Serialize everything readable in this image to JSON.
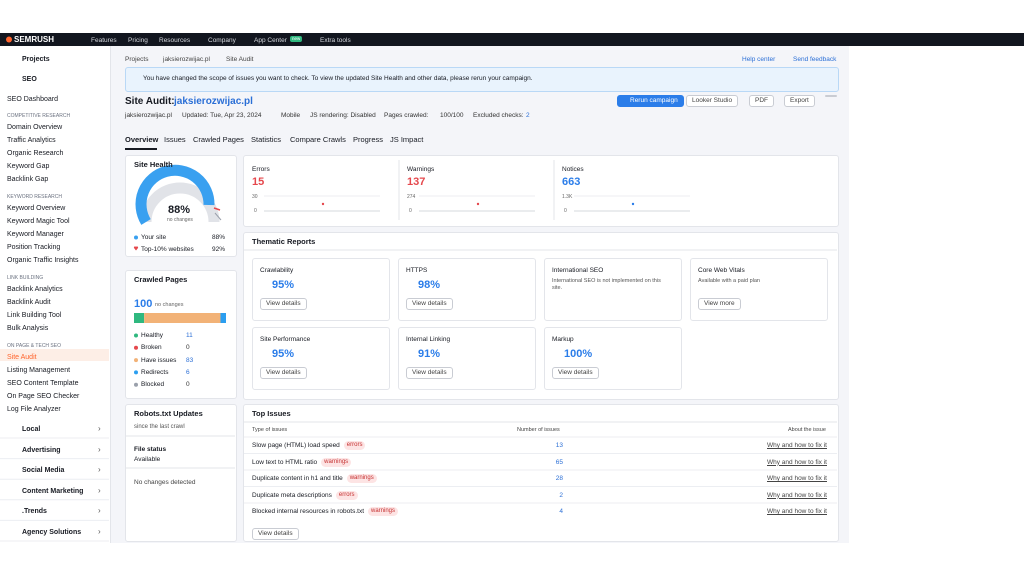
{
  "nav": {
    "logo": "SEMRUSH",
    "items": [
      "Features",
      "Pricing",
      "Resources",
      "Company",
      "App Center",
      "Extra tools"
    ],
    "badge": "new"
  },
  "sidebar": {
    "projects": "Projects",
    "seo": "SEO",
    "dashboard": "SEO Dashboard",
    "sections": [
      {
        "title": "COMPETITIVE RESEARCH",
        "items": [
          "Domain Overview",
          "Traffic Analytics",
          "Organic Research",
          "Keyword Gap",
          "Backlink Gap"
        ]
      },
      {
        "title": "KEYWORD RESEARCH",
        "items": [
          "Keyword Overview",
          "Keyword Magic Tool",
          "Keyword Manager",
          "Position Tracking",
          "Organic Traffic Insights"
        ]
      },
      {
        "title": "LINK BUILDING",
        "items": [
          "Backlink Analytics",
          "Backlink Audit",
          "Link Building Tool",
          "Bulk Analysis"
        ]
      },
      {
        "title": "ON PAGE & TECH SEO",
        "items": [
          "Site Audit",
          "Listing Management",
          "SEO Content Template",
          "On Page SEO Checker",
          "Log File Analyzer"
        ]
      }
    ],
    "tools": [
      "Local",
      "Advertising",
      "Social Media",
      "Content Marketing",
      ".Trends",
      "Agency Solutions"
    ]
  },
  "breadcrumb": [
    "Projects",
    "jaksierozwijac.pl",
    "Site Audit"
  ],
  "help": [
    "Help center",
    "Send feedback"
  ],
  "notice": "You have changed the scope of issues you want to check. To view the updated Site Health and other data, please rerun your campaign.",
  "header": {
    "title": "Site Audit:",
    "domain": "jaksierozwijac.pl",
    "buttons": [
      "Rerun campaign",
      "Looker Studio",
      "PDF",
      "Export"
    ],
    "info": {
      "domain": "jaksierozwijac.pl",
      "updated": "Updated: Tue, Apr 23, 2024",
      "device": "Mobile",
      "js": "JS rendering: Disabled",
      "pages_label": "Pages crawled:",
      "pages": "100/100",
      "excluded_label": "Excluded checks:",
      "excluded": "2"
    }
  },
  "tabs": [
    "Overview",
    "Issues",
    "Crawled Pages",
    "Statistics",
    "Compare Crawls",
    "Progress",
    "JS Impact"
  ],
  "site_health": {
    "title": "Site Health",
    "value": "88%",
    "change": "no changes",
    "legend": [
      {
        "name": "Your site",
        "value": "88%"
      },
      {
        "name": "Top-10% websites",
        "value": "92%"
      }
    ]
  },
  "crawled": {
    "title": "Crawled Pages",
    "total": "100",
    "change": "no changes",
    "rows": [
      {
        "name": "Healthy",
        "value": 11,
        "color": "#2fb87f"
      },
      {
        "name": "Broken",
        "value": 0,
        "color": "#e5484d"
      },
      {
        "name": "Have issues",
        "value": 83,
        "color": "#f2b277"
      },
      {
        "name": "Redirects",
        "value": 6,
        "color": "#2b9ef0"
      },
      {
        "name": "Blocked",
        "value": 0,
        "color": "#9aa0ab"
      }
    ]
  },
  "robots": {
    "title": "Robots.txt Updates",
    "subtitle": "since the last crawl",
    "status_label": "File status",
    "status": "Available",
    "changes": "No changes detected"
  },
  "metrics": [
    {
      "name": "Errors",
      "value": "15",
      "color": "#e5484d",
      "top": "30",
      "bottom": "0"
    },
    {
      "name": "Warnings",
      "value": "137",
      "color": "#e5484d",
      "top": "274",
      "bottom": "0"
    },
    {
      "name": "Notices",
      "value": "663",
      "color": "#2b7de9",
      "top": "1.3K",
      "bottom": "0"
    }
  ],
  "thematic": {
    "title": "Thematic Reports",
    "cards": [
      {
        "name": "Crawlability",
        "value": "95%",
        "button": "View details"
      },
      {
        "name": "HTTPS",
        "value": "98%",
        "button": "View details"
      },
      {
        "name": "International SEO",
        "text": "International SEO is not implemented on this site."
      },
      {
        "name": "Core Web Vitals",
        "text": "Available with a paid plan",
        "button": "View more"
      },
      {
        "name": "Site Performance",
        "value": "95%",
        "button": "View details"
      },
      {
        "name": "Internal Linking",
        "value": "91%",
        "button": "View details"
      },
      {
        "name": "Markup",
        "value": "100%",
        "button": "View details"
      }
    ]
  },
  "issues": {
    "title": "Top Issues",
    "columns": [
      "Type of issues",
      "Number of issues",
      "About the issue"
    ],
    "rows": [
      {
        "name": "Slow page (HTML) load speed",
        "tag": "errors",
        "count": "13",
        "link": "Why and how to fix it"
      },
      {
        "name": "Low text to HTML ratio",
        "tag": "warnings",
        "count": "65",
        "link": "Why and how to fix it"
      },
      {
        "name": "Duplicate content in h1 and title",
        "tag": "warnings",
        "count": "28",
        "link": "Why and how to fix it"
      },
      {
        "name": "Duplicate meta descriptions",
        "tag": "errors",
        "count": "2",
        "link": "Why and how to fix it"
      },
      {
        "name": "Blocked internal resources in robots.txt",
        "tag": "warnings",
        "count": "4",
        "link": "Why and how to fix it"
      }
    ],
    "button": "View details"
  }
}
